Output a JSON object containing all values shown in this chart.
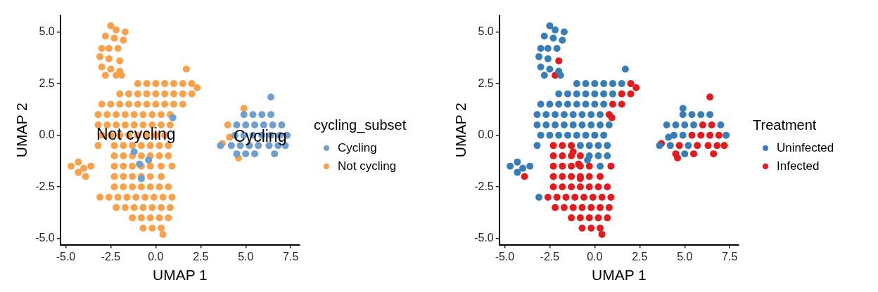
{
  "chart_data": [
    {
      "type": "scatter",
      "xlabel": "UMAP 1",
      "ylabel": "UMAP 2",
      "legend_title": "cycling_subset",
      "legend": "right",
      "grid": false,
      "marker": "circle",
      "xlim": [
        -5.3,
        8.0
      ],
      "ylim": [
        -5.3,
        5.8
      ],
      "xticks": [
        {
          "value": -5,
          "label": "-5.0"
        },
        {
          "value": -2.5,
          "label": "-2.5"
        },
        {
          "value": 0,
          "label": "0.0"
        },
        {
          "value": 2.5,
          "label": "2.5"
        },
        {
          "value": 5,
          "label": "5.0"
        },
        {
          "value": 7.5,
          "label": "7.5"
        }
      ],
      "yticks": [
        {
          "value": -5,
          "label": "-5.0"
        },
        {
          "value": -2.5,
          "label": "-2.5"
        },
        {
          "value": 0,
          "label": "0.0"
        },
        {
          "value": 2.5,
          "label": "2.5"
        },
        {
          "value": 5,
          "label": "5.0"
        }
      ],
      "annotations": [
        {
          "text": "Not cycling",
          "x": -1.1,
          "y": 0.0
        },
        {
          "text": "Cycling",
          "x": 5.8,
          "y": -0.1
        }
      ],
      "series": [
        {
          "name": "Cycling",
          "color": "#6f9ecf",
          "x": [
            4.9,
            5.4,
            5.9,
            6.4,
            4.5,
            5.0,
            5.5,
            6.0,
            6.5,
            7.0,
            4.4,
            4.9,
            5.4,
            5.9,
            6.4,
            6.9,
            7.3,
            3.6,
            4.2,
            4.7,
            5.2,
            5.7,
            6.3,
            6.8,
            7.2,
            4.5,
            5.0,
            5.5,
            6.6,
            6.4,
            0.95,
            -1.2,
            -0.9,
            -0.8,
            -0.4
          ],
          "values": [
            1.0,
            1.0,
            1.0,
            1.0,
            0.5,
            0.5,
            0.5,
            0.5,
            0.5,
            0.5,
            0,
            0,
            0,
            0,
            0,
            0,
            0,
            -0.5,
            -0.5,
            -0.5,
            -0.5,
            -0.5,
            -0.5,
            -0.5,
            -0.5,
            -0.9,
            -0.9,
            -0.9,
            -0.9,
            1.85,
            0.85,
            -0.8,
            -1.4,
            -2.1,
            -1.2
          ]
        },
        {
          "name": "Not cycling",
          "color": "#fca04a",
          "x": [
            -2.5,
            -2.2,
            -1.7,
            -2.8,
            -2.3,
            -1.8,
            -3.0,
            -2.6,
            -2.1,
            -3.1,
            -2.6,
            -2.0,
            -3.0,
            -2.5,
            -2.0,
            -2.8,
            -2.2,
            -1.9,
            -4.7,
            -4.3,
            -4.0,
            -3.6,
            -4.3,
            -3.9,
            1.7,
            2.3,
            -3.2,
            -1.0,
            -0.5,
            0,
            0.5,
            1.0,
            1.5,
            2.0,
            -2.0,
            -1.5,
            -1.0,
            -0.5,
            0,
            0.5,
            1.0,
            1.5,
            2.0,
            -3.0,
            -2.5,
            -2.0,
            -1.5,
            -1.0,
            -0.5,
            0,
            0.5,
            1.0,
            1.5,
            -3.2,
            -2.7,
            -2.2,
            -1.7,
            -1.2,
            -0.7,
            -0.2,
            0.3,
            0.8,
            -3.2,
            -2.7,
            -2.2,
            -1.7,
            -1.2,
            -0.7,
            -0.2,
            0.3,
            0.8,
            -3.0,
            -2.5,
            -2.0,
            -1.5,
            -1.0,
            -0.5,
            0,
            0.5,
            -2.3,
            -1.8,
            -1.3,
            -0.8,
            -0.3,
            0.2,
            0.7,
            -2.3,
            -1.8,
            -1.3,
            -0.8,
            -0.3,
            0.2,
            0.7,
            -2.3,
            -1.8,
            -1.3,
            -0.8,
            -0.3,
            0.3,
            0.9,
            -2.3,
            -1.8,
            -1.3,
            -0.8,
            -0.3,
            0.3,
            -2.3,
            -1.8,
            -1.3,
            -0.8,
            -0.3,
            0.2,
            0.7,
            -3.1,
            -2.6,
            -2.1,
            -1.6,
            -1.1,
            -0.6,
            -0.1,
            0.4,
            0.9,
            -2.2,
            -1.7,
            -1.2,
            -0.7,
            -0.2,
            0.3,
            0.8,
            -1.3,
            -0.8,
            -0.3,
            0.2,
            0.7,
            -0.7,
            -0.2,
            0.3,
            0.4,
            4.9,
            4.0,
            3.7,
            4.6,
            4.1
          ],
          "values": [
            5.3,
            5.1,
            5.0,
            4.8,
            4.7,
            4.6,
            4.2,
            4.2,
            4.2,
            3.8,
            3.7,
            3.6,
            3.3,
            3.2,
            3.1,
            2.9,
            2.9,
            2.9,
            -1.5,
            -1.3,
            -1.6,
            -1.5,
            -1.8,
            -2.0,
            3.2,
            2.3,
            -0.5,
            2.5,
            2.5,
            2.5,
            2.5,
            2.5,
            2.5,
            2.5,
            2.0,
            2.0,
            2.0,
            2.0,
            2.0,
            2.0,
            2.0,
            2.0,
            2.0,
            1.5,
            1.5,
            1.5,
            1.5,
            1.5,
            1.5,
            1.5,
            1.5,
            1.5,
            1.5,
            1.0,
            1.0,
            1.0,
            1.0,
            1.0,
            1.0,
            1.0,
            1.0,
            1.0,
            0.5,
            0.5,
            0.5,
            0.5,
            0.5,
            0.5,
            0.5,
            0.5,
            0.5,
            0,
            0,
            0,
            0,
            0,
            0,
            0,
            0,
            -0.5,
            -0.5,
            -0.5,
            -0.5,
            -0.5,
            -0.5,
            -0.5,
            -1.0,
            -1.0,
            -1.0,
            -1.0,
            -1.0,
            -1.0,
            -1.0,
            -1.5,
            -1.5,
            -1.5,
            -1.5,
            -1.5,
            -1.5,
            -1.5,
            -2.0,
            -2.0,
            -2.0,
            -2.0,
            -2.0,
            -2.0,
            -2.5,
            -2.5,
            -2.5,
            -2.5,
            -2.5,
            -2.5,
            -2.5,
            -3.0,
            -3.0,
            -3.0,
            -3.0,
            -3.0,
            -3.0,
            -3.0,
            -3.0,
            -3.0,
            -3.5,
            -3.5,
            -3.5,
            -3.5,
            -3.5,
            -3.5,
            -3.5,
            -4.0,
            -4.0,
            -4.0,
            -4.0,
            -4.0,
            -4.5,
            -4.5,
            -4.5,
            -4.8,
            1.3,
            0.5,
            -0.4,
            -1.1,
            -0.1
          ]
        }
      ]
    },
    {
      "type": "scatter",
      "xlabel": "UMAP 1",
      "ylabel": "UMAP 2",
      "legend_title": "Treatment",
      "legend": "right",
      "grid": false,
      "marker": "circle",
      "xlim": [
        -5.3,
        8.0
      ],
      "ylim": [
        -5.3,
        5.8
      ],
      "xticks": [
        {
          "value": -5,
          "label": "-5.0"
        },
        {
          "value": -2.5,
          "label": "-2.5"
        },
        {
          "value": 0,
          "label": "0.0"
        },
        {
          "value": 2.5,
          "label": "2.5"
        },
        {
          "value": 5,
          "label": "5.0"
        },
        {
          "value": 7.5,
          "label": "7.5"
        }
      ],
      "yticks": [
        {
          "value": -5,
          "label": "-5.0"
        },
        {
          "value": -2.5,
          "label": "-2.5"
        },
        {
          "value": 0,
          "label": "0.0"
        },
        {
          "value": 2.5,
          "label": "2.5"
        },
        {
          "value": 5,
          "label": "5.0"
        }
      ],
      "series": [
        {
          "name": "Uninfected",
          "color": "#377eb8",
          "x": [
            -2.5,
            -2.2,
            -1.7,
            -2.8,
            -2.3,
            -1.8,
            -3.0,
            -2.6,
            -2.1,
            -3.1,
            -2.6,
            -3.0,
            -2.5,
            -2.0,
            -2.8,
            -1.9,
            -4.7,
            -4.3,
            -4.0,
            -3.6,
            -4.3,
            1.7,
            -3.2,
            -0.4,
            -3.1,
            -1.0,
            -0.5,
            0,
            0.5,
            1.0,
            1.5,
            -2.0,
            -1.5,
            -1.0,
            -0.5,
            0,
            0.5,
            1.0,
            -3.0,
            -2.5,
            -2.0,
            -1.5,
            -1.0,
            -0.5,
            0,
            0.5,
            -3.2,
            -2.7,
            -2.2,
            -1.7,
            -1.2,
            -0.7,
            -0.2,
            0.3,
            -3.2,
            -2.7,
            -2.2,
            -1.7,
            -1.2,
            -0.7,
            -0.2,
            0.3,
            0.8,
            -3.0,
            -2.5,
            -2.0,
            -1.5,
            -1.0,
            -0.5,
            0,
            0.5,
            -0.8,
            -0.3,
            0.2,
            0.7,
            -0.3,
            0.2,
            0.7,
            0.3,
            4.9,
            5.4,
            5.9,
            6.4,
            4.5,
            5.0,
            5.5,
            7.0,
            4.4,
            4.9,
            7.3,
            3.6,
            4.2,
            5.2,
            5.0,
            4.9,
            4.0,
            4.1
          ],
          "values": [
            5.3,
            5.1,
            5.0,
            4.8,
            4.7,
            4.6,
            4.2,
            4.2,
            4.2,
            3.8,
            3.7,
            3.3,
            3.2,
            3.1,
            2.9,
            2.9,
            -1.5,
            -1.3,
            -1.6,
            -1.5,
            -1.8,
            3.2,
            -0.5,
            -1.2,
            -3.0,
            2.5,
            2.5,
            2.5,
            2.5,
            2.5,
            2.5,
            2.0,
            2.0,
            2.0,
            2.0,
            2.0,
            2.0,
            2.0,
            1.5,
            1.5,
            1.5,
            1.5,
            1.5,
            1.5,
            1.5,
            1.5,
            1.0,
            1.0,
            1.0,
            1.0,
            1.0,
            1.0,
            1.0,
            1.0,
            0.5,
            0.5,
            0.5,
            0.5,
            0.5,
            0.5,
            0.5,
            0.5,
            0.5,
            0,
            0,
            0,
            0,
            0,
            0,
            0,
            0,
            -0.5,
            -0.5,
            -0.5,
            -0.5,
            -1.0,
            -1.0,
            -1.0,
            -1.5,
            1.0,
            1.0,
            1.0,
            1.0,
            0.5,
            0.5,
            0.5,
            0.5,
            0,
            0,
            0,
            -0.5,
            -0.5,
            -0.5,
            -0.9,
            1.3,
            0.5,
            -0.1
          ]
        },
        {
          "name": "Infected",
          "color": "#e41a1c",
          "x": [
            -2.0,
            -2.2,
            -3.9,
            2.0,
            1.5,
            2.0,
            1.0,
            1.5,
            0.8,
            2.3,
            0.95,
            -1.2,
            -0.9,
            -0.8,
            -2.3,
            -1.8,
            -1.3,
            -2.3,
            -1.8,
            -1.3,
            -0.8,
            -2.3,
            -1.8,
            -1.3,
            -0.8,
            -0.3,
            0.9,
            -2.3,
            -1.8,
            -1.3,
            -0.8,
            -0.3,
            0.3,
            -2.3,
            -1.8,
            -1.3,
            -0.8,
            -0.3,
            0.2,
            0.7,
            -2.6,
            -2.1,
            -1.6,
            -1.1,
            -0.6,
            -0.1,
            0.4,
            0.9,
            -2.2,
            -1.7,
            -1.2,
            -0.7,
            -0.2,
            0.3,
            0.8,
            -1.3,
            -0.8,
            -0.3,
            0.2,
            0.7,
            -0.7,
            -0.2,
            0.3,
            0.4,
            6.0,
            6.5,
            5.4,
            5.9,
            6.4,
            6.9,
            4.7,
            5.7,
            6.3,
            6.8,
            7.2,
            4.5,
            5.5,
            6.6,
            3.7,
            4.6,
            6.4
          ],
          "values": [
            3.6,
            2.9,
            -2.0,
            2.5,
            2.0,
            2.0,
            1.5,
            1.5,
            1.0,
            2.3,
            0.85,
            -0.8,
            -1.4,
            -2.1,
            -0.5,
            -0.5,
            -0.5,
            -1.0,
            -1.0,
            -1.0,
            -1.0,
            -1.5,
            -1.5,
            -1.5,
            -1.5,
            -1.5,
            -1.5,
            -2.0,
            -2.0,
            -2.0,
            -2.0,
            -2.0,
            -2.0,
            -2.5,
            -2.5,
            -2.5,
            -2.5,
            -2.5,
            -2.5,
            -2.5,
            -3.0,
            -3.0,
            -3.0,
            -3.0,
            -3.0,
            -3.0,
            -3.0,
            -3.0,
            -3.5,
            -3.5,
            -3.5,
            -3.5,
            -3.5,
            -3.5,
            -3.5,
            -4.0,
            -4.0,
            -4.0,
            -4.0,
            -4.0,
            -4.5,
            -4.5,
            -4.5,
            -4.8,
            0.5,
            0.5,
            0,
            0,
            0,
            0,
            -0.5,
            -0.5,
            -0.5,
            -0.5,
            -0.5,
            -0.9,
            -0.9,
            -0.9,
            -0.4,
            -1.1,
            1.85
          ]
        }
      ]
    }
  ]
}
